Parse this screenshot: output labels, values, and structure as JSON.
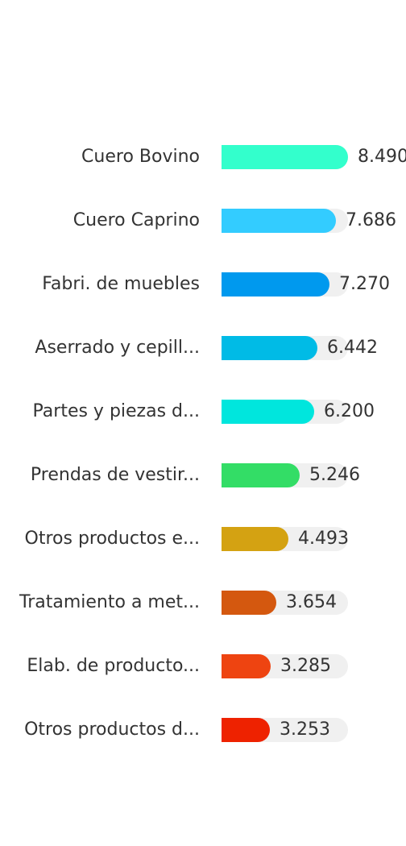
{
  "chart_data": {
    "type": "bar",
    "orientation": "horizontal",
    "title": "",
    "xlabel": "",
    "ylabel": "",
    "grid": false,
    "xlim": [
      0,
      8490
    ],
    "categories": [
      "Cuero Bovino",
      "Cuero Caprino",
      "Fabri. de muebles",
      "Aserrado y cepill...",
      "Partes y piezas d...",
      "Prendas de vestir...",
      "Otros productos e...",
      "Tratamiento a met...",
      "Elab. de producto...",
      "Otros productos d..."
    ],
    "values": [
      8490,
      7686,
      7270,
      6442,
      6200,
      5246,
      4493,
      3654,
      3285,
      3253
    ],
    "value_labels": [
      "8.490",
      "7.686",
      "7.270",
      "6.442",
      "6.200",
      "5.246",
      "4.493",
      "3.654",
      "3.285",
      "3.253"
    ],
    "colors": [
      "#33ffcc",
      "#33ccff",
      "#0099ee",
      "#00bbe6",
      "#00e6dd",
      "#33dd66",
      "#d4a212",
      "#d4580f",
      "#ee4411",
      "#ee2200"
    ],
    "track_color": "#f0f0f0"
  }
}
